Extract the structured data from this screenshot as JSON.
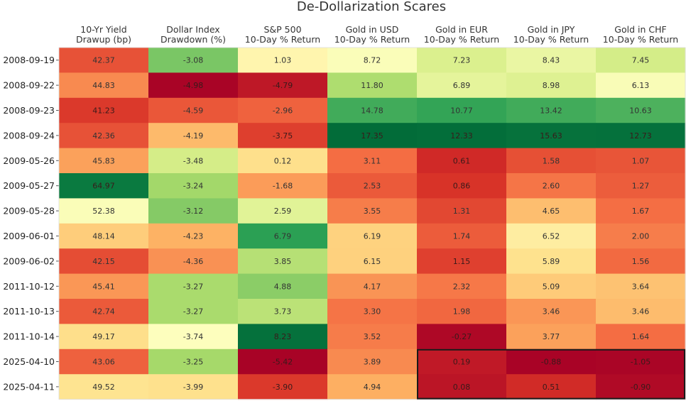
{
  "chart_data": {
    "type": "heatmap",
    "title": "De-Dollarization Scares",
    "columns": [
      [
        "10-Yr Yield",
        "Drawup (bp)"
      ],
      [
        "Dollar Index",
        "Drawdown (%)"
      ],
      [
        "S&P 500",
        "10-Day % Return"
      ],
      [
        "Gold in USD",
        "10-Day % Return"
      ],
      [
        "Gold in EUR",
        "10-Day % Return"
      ],
      [
        "Gold in JPY",
        "10-Day % Return"
      ],
      [
        "Gold in CHF",
        "10-Day % Return"
      ]
    ],
    "rows": [
      "2008-09-19",
      "2008-09-22",
      "2008-09-23",
      "2008-09-24",
      "2009-05-26",
      "2009-05-27",
      "2009-05-28",
      "2009-06-01",
      "2009-06-02",
      "2011-10-12",
      "2011-10-13",
      "2011-10-14",
      "2025-04-10",
      "2025-04-11"
    ],
    "values": [
      [
        42.37,
        -3.08,
        1.03,
        8.72,
        7.23,
        8.43,
        7.45
      ],
      [
        44.83,
        -4.98,
        -4.79,
        11.8,
        6.89,
        8.98,
        6.13
      ],
      [
        41.23,
        -4.59,
        -2.96,
        14.78,
        10.77,
        13.42,
        10.63
      ],
      [
        42.36,
        -4.19,
        -3.75,
        17.35,
        12.33,
        15.63,
        12.73
      ],
      [
        45.83,
        -3.48,
        0.12,
        3.11,
        0.61,
        1.58,
        1.07
      ],
      [
        64.97,
        -3.24,
        -1.68,
        2.53,
        0.86,
        2.6,
        1.27
      ],
      [
        52.38,
        -3.12,
        2.59,
        3.55,
        1.31,
        4.65,
        1.67
      ],
      [
        48.14,
        -4.23,
        6.79,
        6.19,
        1.74,
        6.52,
        2.0
      ],
      [
        42.15,
        -4.36,
        3.85,
        6.15,
        1.15,
        5.89,
        1.56
      ],
      [
        45.41,
        -3.27,
        4.88,
        4.17,
        2.32,
        5.09,
        3.64
      ],
      [
        42.74,
        -3.27,
        3.73,
        3.3,
        1.98,
        3.46,
        3.46
      ],
      [
        49.17,
        -3.74,
        8.23,
        3.52,
        -0.27,
        3.77,
        1.64
      ],
      [
        43.06,
        -3.25,
        -5.42,
        3.89,
        0.19,
        -0.88,
        -1.05
      ],
      [
        49.52,
        -3.99,
        -3.9,
        4.94,
        0.08,
        0.51,
        -0.9
      ]
    ],
    "column_ranges": [
      [
        38,
        66
      ],
      [
        -5.0,
        -2.5
      ],
      [
        -5.5,
        8.5
      ],
      [
        -0.5,
        17.5
      ],
      [
        -0.5,
        12.5
      ],
      [
        -1.0,
        16.0
      ],
      [
        -1.2,
        13.0
      ]
    ],
    "colormap": "RdYlGn",
    "highlight_box": {
      "rows": [
        12,
        13
      ],
      "cols": [
        4,
        6
      ]
    }
  },
  "colors": {
    "title": "#333333",
    "label": "#222222",
    "tick": "#555555",
    "box": "#1a1a1a"
  }
}
